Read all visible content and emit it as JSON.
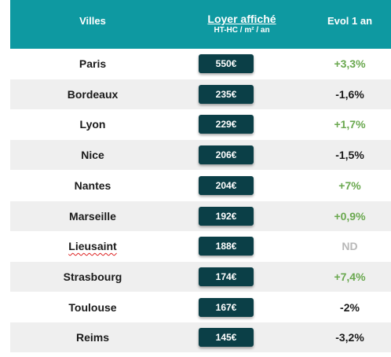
{
  "header": {
    "villes": "Villes",
    "loyer": "Loyer affiché",
    "loyer_sub": "HT-HC / m² / an",
    "evol": "Evol 1 an"
  },
  "colors": {
    "header_bg": "#0e99a1",
    "price_bg": "#0b3f47",
    "positive": "#6aa84f",
    "negative": "#1a1a1a",
    "na": "#b8b8b8"
  },
  "rows": [
    {
      "city": "Paris",
      "price": "550€",
      "evol": "+3,3%",
      "trend": "positive"
    },
    {
      "city": "Bordeaux",
      "price": "235€",
      "evol": "-1,6%",
      "trend": "negative"
    },
    {
      "city": "Lyon",
      "price": "229€",
      "evol": "+1,7%",
      "trend": "positive"
    },
    {
      "city": "Nice",
      "price": "206€",
      "evol": "-1,5%",
      "trend": "negative"
    },
    {
      "city": "Nantes",
      "price": "204€",
      "evol": "+7%",
      "trend": "positive"
    },
    {
      "city": "Marseille",
      "price": "192€",
      "evol": "+0,9%",
      "trend": "positive"
    },
    {
      "city": "Lieusaint",
      "price": "188€",
      "evol": "ND",
      "trend": "na"
    },
    {
      "city": "Strasbourg",
      "price": "174€",
      "evol": "+7,4%",
      "trend": "positive"
    },
    {
      "city": "Toulouse",
      "price": "167€",
      "evol": "-2%",
      "trend": "negative"
    },
    {
      "city": "Reims",
      "price": "145€",
      "evol": "-3,2%",
      "trend": "negative"
    }
  ]
}
